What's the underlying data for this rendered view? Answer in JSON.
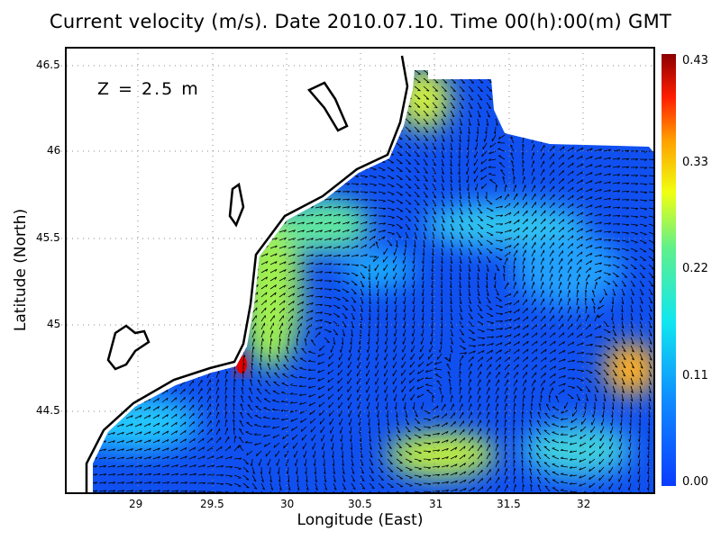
{
  "title": "Current velocity (m/s). Date 2010.07.10. Time 00(h):00(m) GMT",
  "annotation": "Z = 2.5 m",
  "xlabel": "Longitude (East)",
  "ylabel": "Latitude (North)",
  "x_ticks": [
    "29",
    "29.5",
    "30",
    "30.5",
    "31",
    "31.5",
    "32"
  ],
  "y_ticks": [
    "46.5",
    "46",
    "45.5",
    "45",
    "44.5"
  ],
  "colorbar": {
    "ticks": [
      "0.43",
      "0.33",
      "0.22",
      "0.11",
      "0.00"
    ],
    "range": [
      0.0,
      0.43
    ],
    "colormap": [
      "#0a3cff",
      "#0f8cff",
      "#10e6f0",
      "#5ff08c",
      "#f0ff10",
      "#ffa000",
      "#ff1e00",
      "#8c0000"
    ]
  },
  "chart_data": {
    "type": "quiver",
    "xlim": [
      28.76,
      32.48
    ],
    "ylim": [
      44.05,
      46.55
    ],
    "grid": true,
    "variable": "Current velocity (m/s)",
    "max_speed_regions": [
      {
        "lon": 29.7,
        "lat": 44.76,
        "speed": 0.43
      },
      {
        "lon": 32.4,
        "lat": 44.75,
        "speed": 0.3
      },
      {
        "lon": 31.0,
        "lat": 46.3,
        "speed": 0.25
      }
    ]
  }
}
